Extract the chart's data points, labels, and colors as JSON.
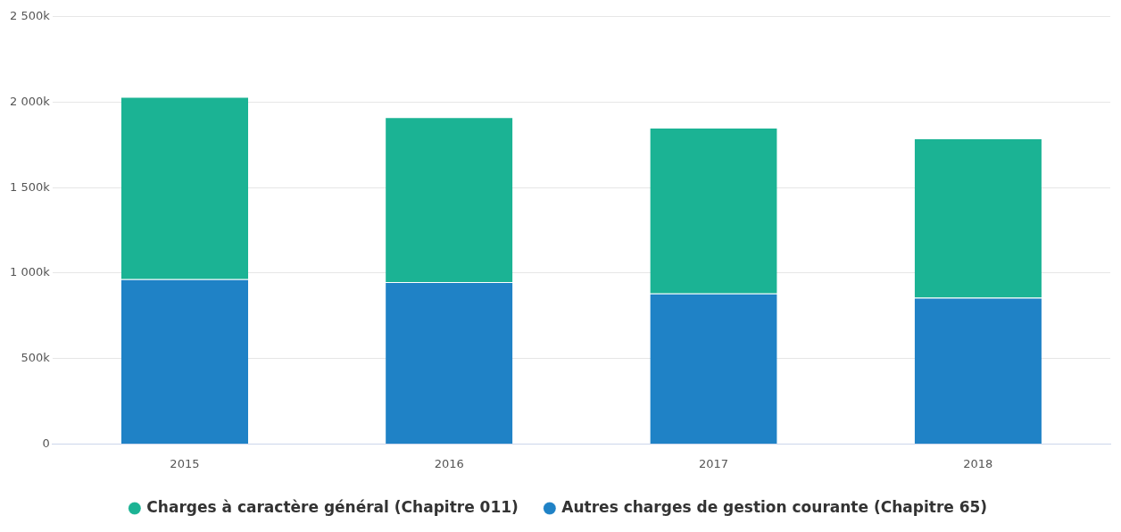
{
  "chart_data": {
    "type": "bar",
    "categories": [
      "2015",
      "2016",
      "2017",
      "2018"
    ],
    "stacked": true,
    "series": [
      {
        "name": "Autres charges de gestion courante (Chapitre 65)",
        "color": "#1f82c6",
        "values": [
          964,
          948,
          881,
          856
        ]
      },
      {
        "name": "Charges à caractère général (Chapitre 011)",
        "color": "#1bb394",
        "values": [
          1067,
          964,
          970,
          933
        ]
      }
    ],
    "ylim": [
      0,
      2500
    ],
    "yticks": [
      0,
      {
        "value": 500,
        "label": "500k"
      },
      {
        "value": 1000,
        "label": "1 000k"
      },
      {
        "value": 1500,
        "label": "1 500k"
      },
      {
        "value": 2000,
        "label": "2 000k"
      },
      {
        "value": 2500,
        "label": "2 500k"
      }
    ],
    "grid": "y",
    "legend": "bottom"
  }
}
